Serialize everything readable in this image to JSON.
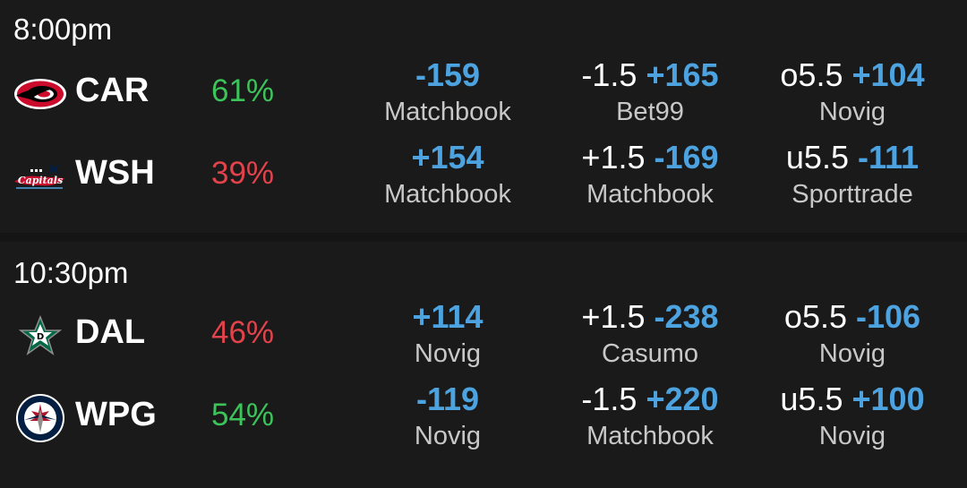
{
  "games": [
    {
      "time": "8:00pm",
      "teams": [
        {
          "abbr": "CAR",
          "logo_icon": "hurricanes-logo-icon",
          "win_pct": "61%",
          "pct_color": "#3cc35a",
          "moneyline": {
            "odds": "-159",
            "book": "Matchbook"
          },
          "spread": {
            "line": "-1.5",
            "odds": "+165",
            "book": "Bet99"
          },
          "total": {
            "line": "o5.5",
            "odds": "+104",
            "book": "Novig"
          }
        },
        {
          "abbr": "WSH",
          "logo_icon": "capitals-logo-icon",
          "win_pct": "39%",
          "pct_color": "#e2434b",
          "moneyline": {
            "odds": "+154",
            "book": "Matchbook"
          },
          "spread": {
            "line": "+1.5",
            "odds": "-169",
            "book": "Matchbook"
          },
          "total": {
            "line": "u5.5",
            "odds": "-111",
            "book": "Sporttrade"
          }
        }
      ]
    },
    {
      "time": "10:30pm",
      "teams": [
        {
          "abbr": "DAL",
          "logo_icon": "stars-logo-icon",
          "win_pct": "46%",
          "pct_color": "#e2434b",
          "moneyline": {
            "odds": "+114",
            "book": "Novig"
          },
          "spread": {
            "line": "+1.5",
            "odds": "-238",
            "book": "Casumo"
          },
          "total": {
            "line": "o5.5",
            "odds": "-106",
            "book": "Novig"
          }
        },
        {
          "abbr": "WPG",
          "logo_icon": "jets-logo-icon",
          "win_pct": "54%",
          "pct_color": "#3cc35a",
          "moneyline": {
            "odds": "-119",
            "book": "Novig"
          },
          "spread": {
            "line": "-1.5",
            "odds": "+220",
            "book": "Matchbook"
          },
          "total": {
            "line": "u5.5",
            "odds": "+100",
            "book": "Novig"
          }
        }
      ]
    }
  ],
  "colors": {
    "background": "#151515",
    "panel": "#1a1a1a",
    "odds_blue": "#4da3e0",
    "book_gray": "#c8c8c8"
  }
}
